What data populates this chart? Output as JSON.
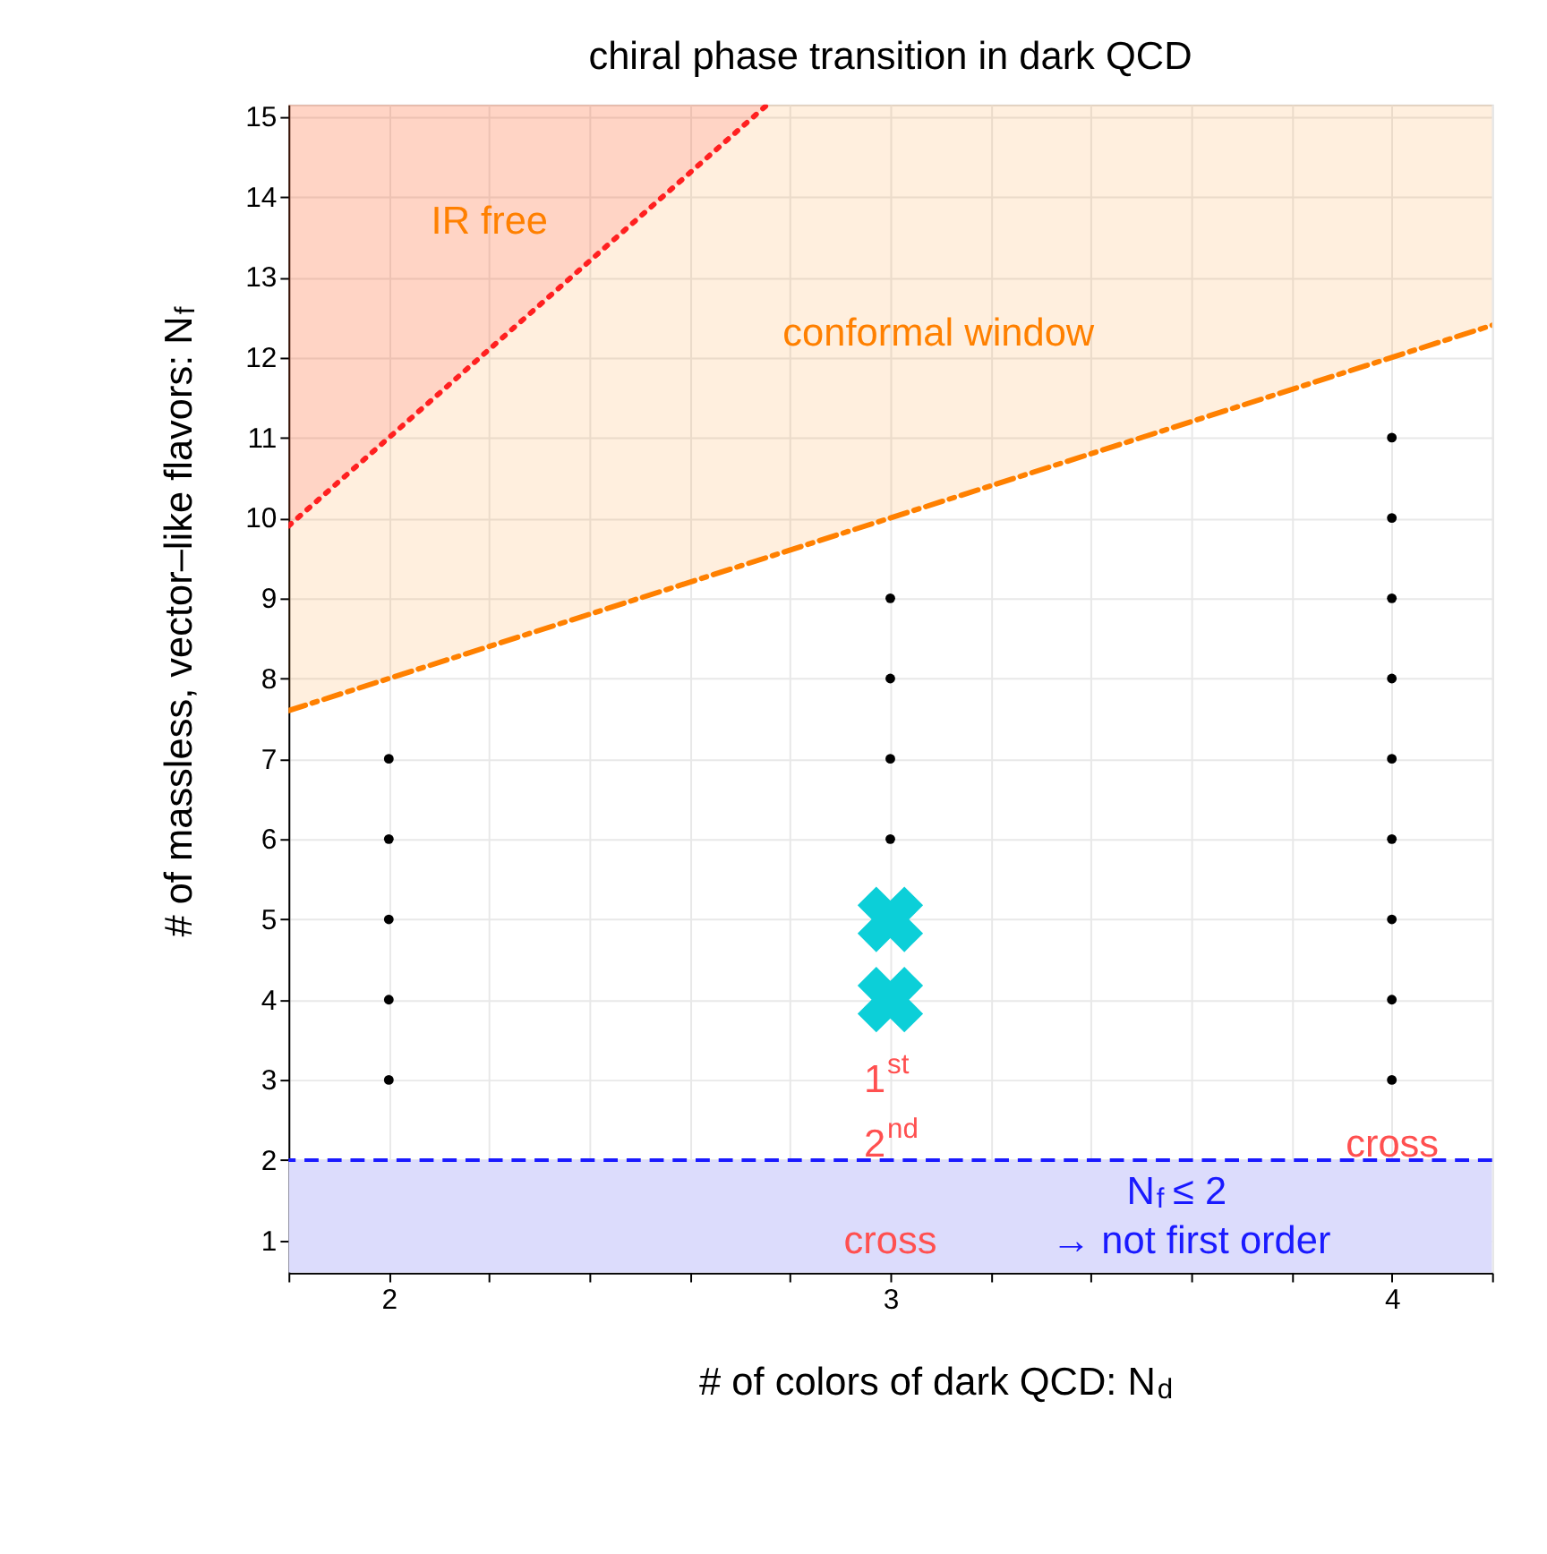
{
  "chart_data": {
    "type": "scatter",
    "title": "chiral phase transition in dark QCD",
    "xlabel": "# of colors of dark QCD:   N$_{d}$",
    "ylabel": "# of massless, vector–like flavors:   N$_{f}$",
    "xlim": [
      1.8,
      4.2
    ],
    "ylim": [
      0.6,
      15.15
    ],
    "xticks": [
      {
        "value": 1.8,
        "label": null
      },
      2,
      {
        "value": 2.2,
        "label": null
      },
      {
        "value": 2.4,
        "label": null
      },
      {
        "value": 2.6,
        "label": null
      },
      {
        "value": 2.8,
        "label": null
      },
      3,
      {
        "value": 3.2,
        "label": null
      },
      {
        "value": 3.4,
        "label": null
      },
      {
        "value": 3.6,
        "label": null
      },
      {
        "value": 3.8,
        "label": null
      },
      4,
      {
        "value": 4.2,
        "label": null
      }
    ],
    "yticks": [
      1,
      2,
      3,
      4,
      5,
      6,
      7,
      8,
      9,
      10,
      11,
      12,
      13,
      14,
      15
    ],
    "grid": true,
    "series": [
      {
        "type": "line",
        "color": "#ff8000",
        "line_style": "dashdot",
        "marker": "none",
        "x": [
          1.8,
          4.2
        ],
        "values": [
          7.6,
          12.4
        ],
        "lower": [
          7.6,
          12.4
        ],
        "upper": [
          15.15,
          15.15
        ]
      },
      {
        "type": "line",
        "color": "#ff2020",
        "line_style": "dotted",
        "marker": "none",
        "x": [
          1.8,
          2.755
        ],
        "values": [
          9.9,
          15.15
        ],
        "lower": [
          9.9,
          15.15
        ],
        "upper": [
          15.15,
          15.15
        ]
      },
      {
        "color": "#000000",
        "marker": "circle",
        "x": [
          2,
          2,
          2,
          2,
          2,
          3,
          3,
          3,
          3,
          4,
          4,
          4,
          4,
          4,
          4,
          4,
          4,
          4
        ],
        "values": [
          3,
          4,
          5,
          6,
          7,
          6,
          7,
          8,
          9,
          3,
          4,
          5,
          6,
          7,
          8,
          9,
          10,
          11
        ]
      },
      {
        "color": "#0ccfd8",
        "marker": "cross",
        "x": [
          3,
          3
        ],
        "values": [
          4,
          5
        ]
      }
    ],
    "ref_lines": [
      {
        "axis": "y",
        "value": 2,
        "label": null,
        "color": "#1a1aff",
        "line_style": "dashed"
      }
    ],
    "bands": [
      {
        "axis": "y",
        "from": 0.6,
        "to": 2,
        "label": null,
        "color": "#dcdcfc"
      }
    ],
    "annotations": [
      "IR free",
      "conformal window",
      "1$^{st}$",
      "2$^{nd}$",
      "cross",
      "cross",
      "N$_{f}$ ≤ 2",
      "→  not first order"
    ]
  }
}
